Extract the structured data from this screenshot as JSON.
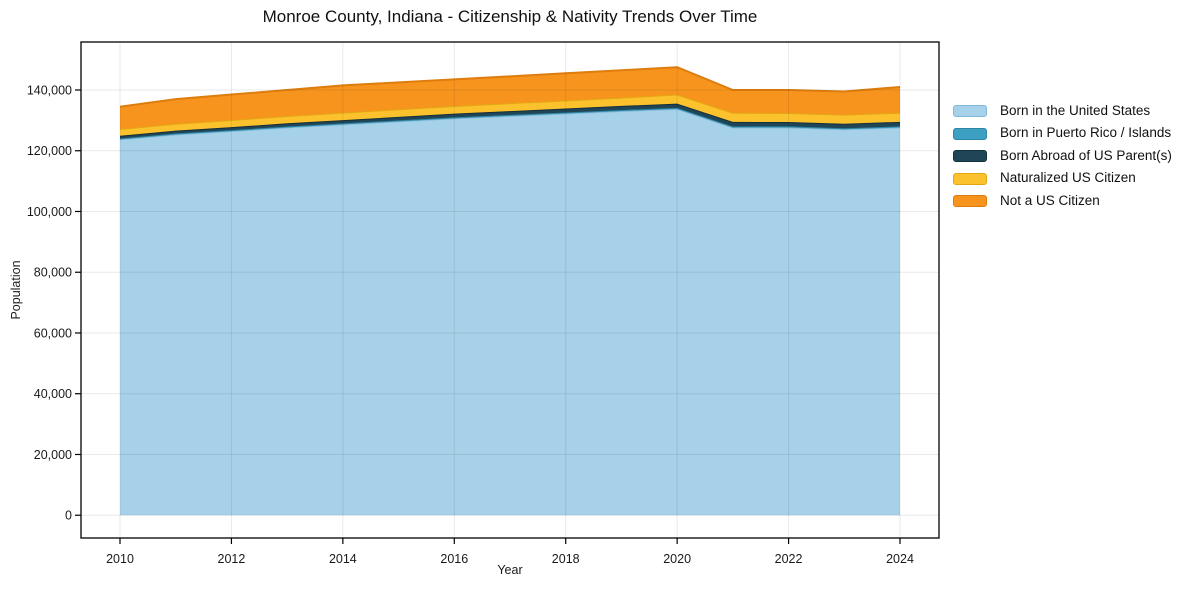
{
  "chart_data": {
    "type": "area",
    "stacked": true,
    "title": "Monroe County, Indiana - Citizenship & Nativity Trends Over Time",
    "xlabel": "Year",
    "ylabel": "Population",
    "grid": true,
    "legend_position": "outside-right",
    "background_color": "#ffffff",
    "grid_color": "rgba(0,0,0,0.085)",
    "frame_color": "#000000",
    "text_color": "#1a1a1a",
    "xlim": [
      2009.3,
      2024.7
    ],
    "ylim": [
      -7500,
      155800
    ],
    "x": [
      2010,
      2011,
      2012,
      2013,
      2014,
      2015,
      2016,
      2017,
      2018,
      2019,
      2020,
      2021,
      2022,
      2023,
      2024
    ],
    "x_ticks": [
      2010,
      2012,
      2014,
      2016,
      2018,
      2020,
      2022,
      2024
    ],
    "x_tick_labels": [
      "2010",
      "2012",
      "2014",
      "2016",
      "2018",
      "2020",
      "2022",
      "2024"
    ],
    "y_ticks": [
      0,
      20000,
      40000,
      60000,
      80000,
      100000,
      120000,
      140000
    ],
    "y_tick_labels": [
      "0",
      "20,000",
      "40,000",
      "60,000",
      "80,000",
      "100,000",
      "120,000",
      "140,000"
    ],
    "series": [
      {
        "name": "Born in the United States",
        "fill": "#A6D1E8",
        "edge": "#7FB8D9",
        "values": [
          123800,
          125400,
          126500,
          127700,
          128700,
          129700,
          130700,
          131500,
          132300,
          133100,
          133800,
          127700,
          127700,
          127100,
          127700
        ]
      },
      {
        "name": "Born in Puerto Rico / Islands",
        "fill": "#3D9FC1",
        "edge": "#2E86A5",
        "values": [
          250,
          260,
          270,
          280,
          290,
          300,
          300,
          310,
          310,
          320,
          330,
          300,
          310,
          300,
          320
        ]
      },
      {
        "name": "Born Abroad of US Parent(s)",
        "fill": "#1F4557",
        "edge": "#15303D",
        "values": [
          900,
          950,
          1000,
          1050,
          1100,
          1150,
          1200,
          1250,
          1300,
          1350,
          1370,
          1500,
          1450,
          1500,
          1500
        ]
      },
      {
        "name": "Naturalized US Citizen",
        "fill": "#FCC22E",
        "edge": "#E3A714",
        "values": [
          2200,
          2260,
          2330,
          2400,
          2450,
          2500,
          2550,
          2600,
          2650,
          2700,
          3000,
          3000,
          2950,
          3000,
          3000
        ]
      },
      {
        "name": "Not a US Citizen",
        "fill": "#F7941E",
        "edge": "#DE7D0D",
        "values": [
          7350,
          8130,
          8400,
          8570,
          8960,
          8850,
          8750,
          8840,
          8940,
          9030,
          9000,
          7500,
          7590,
          7600,
          8480
        ]
      }
    ]
  }
}
